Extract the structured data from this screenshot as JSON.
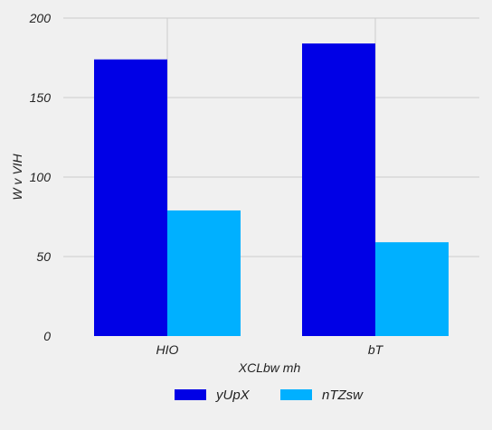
{
  "chart_data": {
    "type": "bar",
    "categories": [
      "HIO",
      "bT"
    ],
    "series": [
      {
        "name": "yUpX",
        "values": [
          174,
          184
        ],
        "color": "#0000e6"
      },
      {
        "name": "nTZsw",
        "values": [
          79,
          59
        ],
        "color": "#00b0ff"
      }
    ],
    "xlabel": "XCLbw mh",
    "ylabel": "W  v VIH",
    "ylim": [
      0,
      200
    ],
    "yticks": [
      0,
      50,
      100,
      150,
      200
    ],
    "grid": true,
    "legend": "bottom-center"
  },
  "colors": {
    "background": "#f0f0f0",
    "grid": "#cccccc"
  }
}
